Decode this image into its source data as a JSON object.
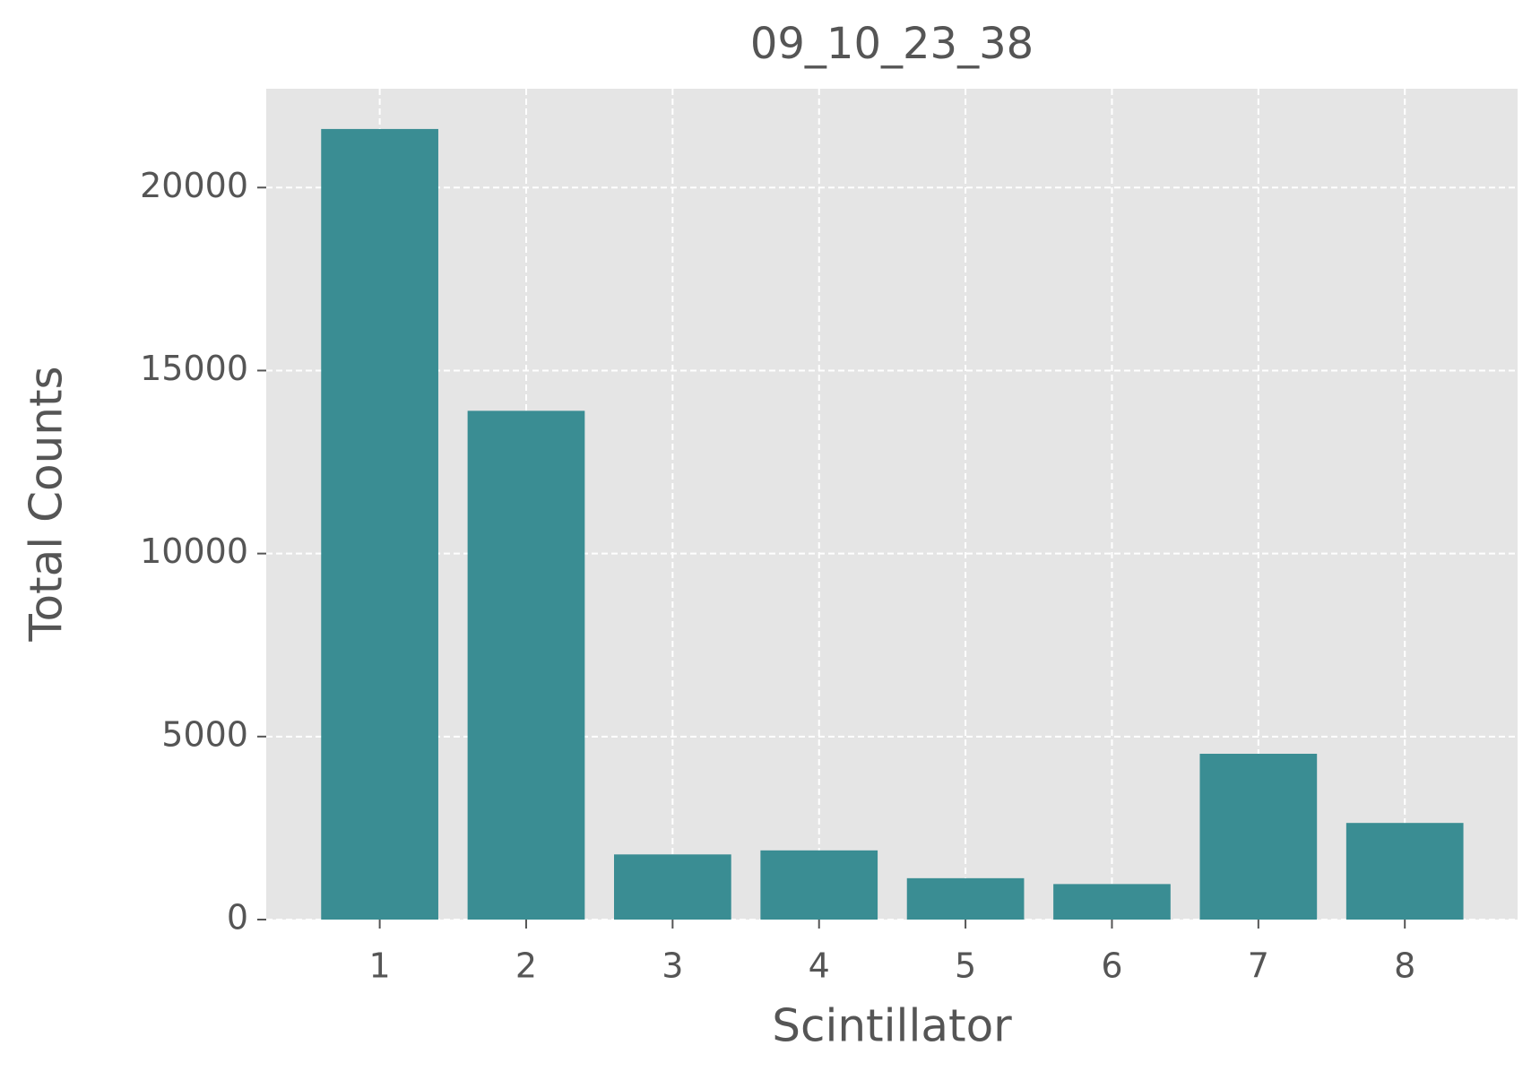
{
  "chart_data": {
    "type": "bar",
    "title": "09_10_23_38",
    "x_label": "Scintillator",
    "y_label": "Total Counts",
    "x": [
      1,
      2,
      3,
      4,
      5,
      6,
      7,
      8
    ],
    "values": [
      21600,
      13900,
      1780,
      1890,
      1130,
      970,
      4530,
      2640
    ],
    "color": "#3a8d93",
    "xlim": [
      0.225,
      8.77
    ],
    "xticks": [
      1,
      2,
      3,
      4,
      5,
      6,
      7,
      8
    ],
    "ylim": [
      0,
      22700
    ],
    "yticks": [
      0,
      5000,
      10000,
      15000,
      20000
    ],
    "grid": true
  }
}
